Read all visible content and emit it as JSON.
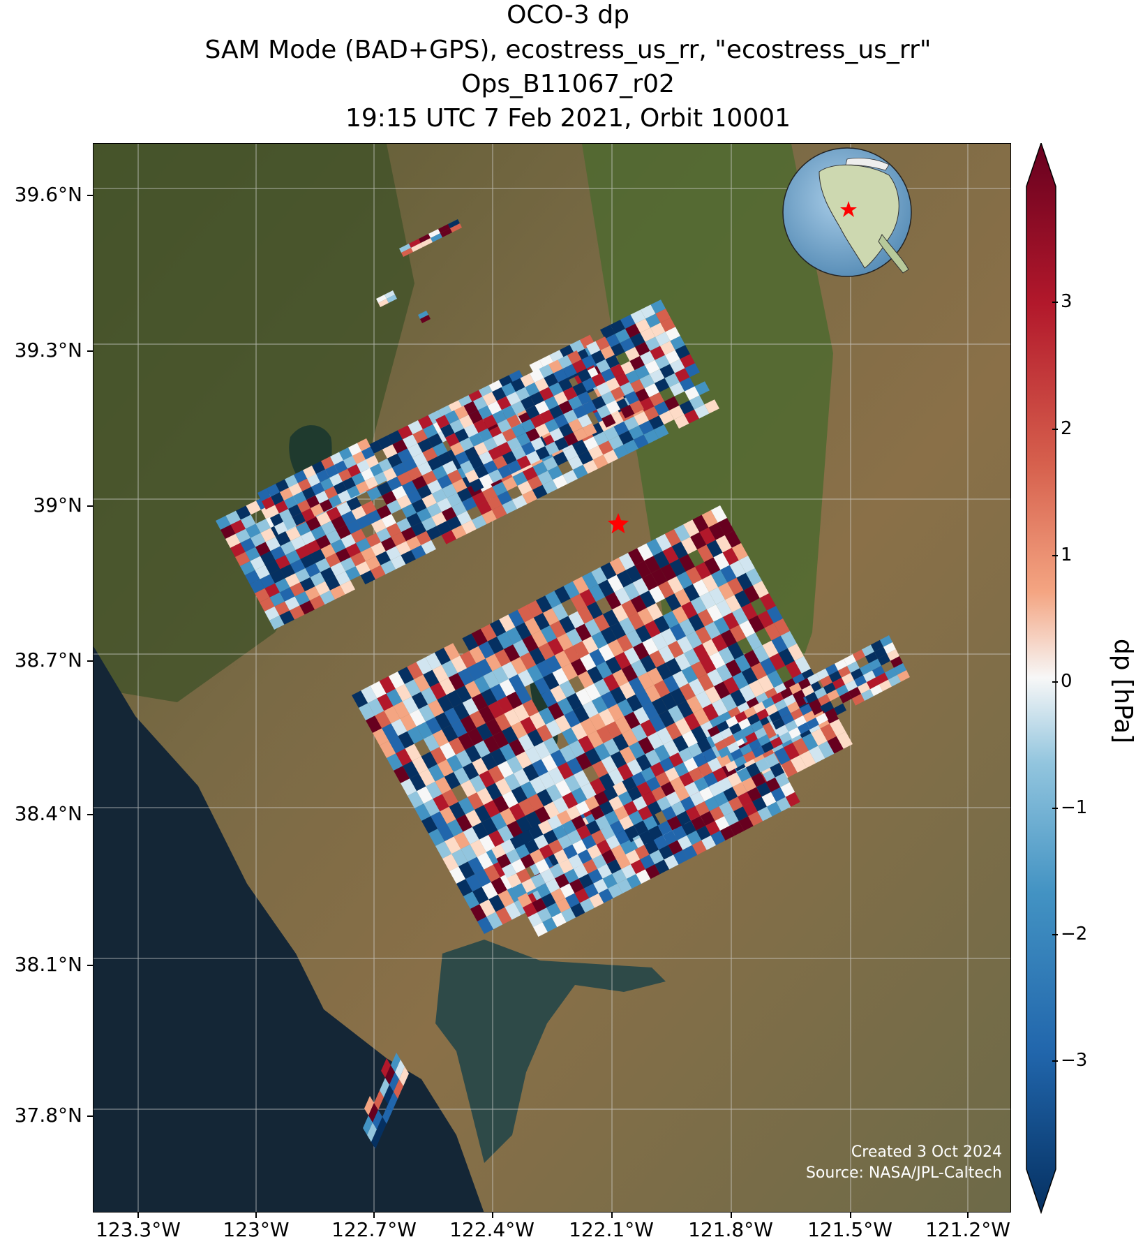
{
  "title": {
    "line1": "OCO-3 dp",
    "line2": "SAM Mode (BAD+GPS), ecostress_us_rr, \"ecostress_us_rr\"",
    "line3": "Ops_B11067_r02",
    "line4": "19:15 UTC 7 Feb 2021, Orbit 10001"
  },
  "map": {
    "lat_ticks": [
      "39.6°N",
      "39.3°N",
      "39°N",
      "38.7°N",
      "38.4°N",
      "38.1°N",
      "37.8°N"
    ],
    "lon_ticks": [
      "123.3°W",
      "123°W",
      "122.7°W",
      "122.4°W",
      "122.1°W",
      "121.8°W",
      "121.5°W",
      "121.2°W"
    ],
    "target_marker": "red-star",
    "inset_globe": "north-america-globe"
  },
  "colorbar": {
    "label": "dp [hPa]",
    "ticks": [
      "3",
      "2",
      "1",
      "0",
      "−1",
      "−2",
      "−3"
    ],
    "colormap": "RdBu_r",
    "range": [
      -4,
      4
    ]
  },
  "credits": {
    "created": "Created 3 Oct 2024",
    "source": "Source: NASA/JPL-Caltech"
  },
  "colors": {
    "dark_red": "#67001f",
    "red": "#d6604d",
    "white": "#f7f7f7",
    "blue": "#4393c3",
    "dark_blue": "#053061"
  }
}
